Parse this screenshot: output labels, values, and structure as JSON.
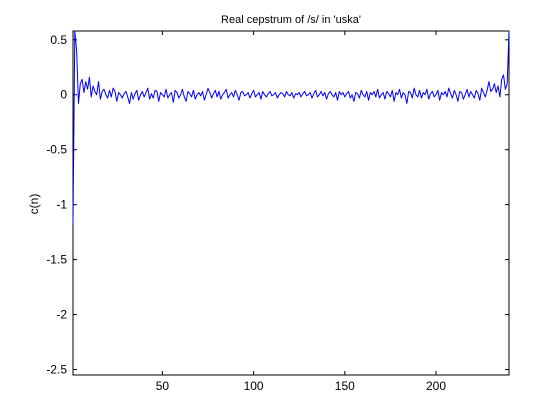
{
  "chart_data": {
    "type": "line",
    "title": "Real cepstrum of /s/ in 'uska'",
    "xlabel": "",
    "ylabel": "c(n)",
    "xlim": [
      1,
      240
    ],
    "ylim": [
      -2.55,
      0.58
    ],
    "xticks": [
      50,
      100,
      150,
      200
    ],
    "yticks": [
      0.5,
      0,
      -0.5,
      -1,
      -1.5,
      -2,
      -2.5
    ],
    "ytick_labels": [
      "0.5",
      "0",
      "-0.5",
      "-1",
      "-1.5",
      "-2",
      "-2.5"
    ],
    "grid": false,
    "line_color": "#0000ff",
    "series": [
      {
        "x": [
          1,
          2,
          3,
          4,
          5,
          6,
          7,
          8,
          9,
          10,
          11,
          12,
          13,
          14,
          15,
          16,
          17,
          18,
          19,
          20,
          21,
          22,
          23,
          24,
          25,
          26,
          27,
          28,
          29,
          30,
          31,
          32,
          33,
          34,
          35,
          36,
          37,
          38,
          39,
          40,
          41,
          42,
          43,
          44,
          45,
          46,
          47,
          48,
          49,
          50,
          51,
          52,
          53,
          54,
          55,
          56,
          57,
          58,
          59,
          60,
          61,
          62,
          63,
          64,
          65,
          66,
          67,
          68,
          69,
          70,
          71,
          72,
          73,
          74,
          75,
          76,
          77,
          78,
          79,
          80,
          81,
          82,
          83,
          84,
          85,
          86,
          87,
          88,
          89,
          90,
          91,
          92,
          93,
          94,
          95,
          96,
          97,
          98,
          99,
          100,
          101,
          102,
          103,
          104,
          105,
          106,
          107,
          108,
          109,
          110,
          111,
          112,
          113,
          114,
          115,
          116,
          117,
          118,
          119,
          120,
          121,
          122,
          123,
          124,
          125,
          126,
          127,
          128,
          129,
          130,
          131,
          132,
          133,
          134,
          135,
          136,
          137,
          138,
          139,
          140,
          141,
          142,
          143,
          144,
          145,
          146,
          147,
          148,
          149,
          150,
          151,
          152,
          153,
          154,
          155,
          156,
          157,
          158,
          159,
          160,
          161,
          162,
          163,
          164,
          165,
          166,
          167,
          168,
          169,
          170,
          171,
          172,
          173,
          174,
          175,
          176,
          177,
          178,
          179,
          180,
          181,
          182,
          183,
          184,
          185,
          186,
          187,
          188,
          189,
          190,
          191,
          192,
          193,
          194,
          195,
          196,
          197,
          198,
          199,
          200,
          201,
          202,
          203,
          204,
          205,
          206,
          207,
          208,
          209,
          210,
          211,
          212,
          213,
          214,
          215,
          216,
          217,
          218,
          219,
          220,
          221,
          222,
          223,
          224,
          225,
          226,
          227,
          228,
          229,
          230,
          231,
          232,
          233,
          234,
          235,
          236,
          237,
          238,
          239,
          240
        ],
        "values": [
          -1.18,
          0.58,
          0.4,
          -0.08,
          0.1,
          0.14,
          0.02,
          0.12,
          0.05,
          0.16,
          -0.02,
          0.08,
          0.03,
          0.0,
          0.12,
          -0.04,
          0.03,
          0.05,
          0.0,
          -0.03,
          0.04,
          -0.02,
          0.06,
          0.03,
          -0.06,
          0.02,
          0.0,
          -0.03,
          0.01,
          0.03,
          -0.02,
          -0.08,
          0.02,
          -0.04,
          0.01,
          0.04,
          -0.05,
          0.0,
          0.03,
          -0.02,
          0.02,
          0.06,
          -0.04,
          0.01,
          -0.03,
          0.04,
          0.03,
          -0.06,
          0.02,
          0.0,
          -0.02,
          0.05,
          -0.03,
          0.0,
          0.02,
          -0.07,
          0.04,
          0.02,
          -0.03,
          0.0,
          0.05,
          -0.02,
          -0.06,
          0.03,
          0.01,
          -0.02,
          0.04,
          -0.04,
          0.0,
          0.02,
          -0.01,
          0.03,
          -0.05,
          0.0,
          0.06,
          0.02,
          -0.03,
          0.01,
          0.04,
          -0.02,
          0.03,
          -0.04,
          0.0,
          0.02,
          0.05,
          -0.03,
          0.0,
          0.02,
          -0.02,
          0.04,
          0.0,
          -0.05,
          0.02,
          0.03,
          -0.01,
          0.0,
          0.02,
          -0.03,
          0.01,
          0.04,
          -0.02,
          0.0,
          0.02,
          -0.04,
          0.03,
          0.0,
          -0.02,
          0.01,
          0.03,
          -0.01,
          0.0,
          0.02,
          -0.03,
          0.0,
          0.02,
          0.01,
          -0.02,
          0.03,
          0.0,
          -0.01,
          0.02,
          -0.03,
          0.01,
          0.0,
          0.02,
          -0.02,
          0.01,
          0.03,
          -0.01,
          0.0,
          0.02,
          -0.03,
          0.01,
          0.04,
          -0.02,
          0.0,
          0.03,
          -0.01,
          0.02,
          -0.04,
          0.01,
          0.03,
          0.0,
          -0.02,
          0.02,
          -0.05,
          0.03,
          0.0,
          0.02,
          -0.02,
          0.01,
          0.03,
          -0.03,
          0.0,
          -0.06,
          0.02,
          0.01,
          -0.03,
          0.04,
          0.0,
          -0.02,
          0.03,
          -0.05,
          0.02,
          0.0,
          0.03,
          -0.02,
          0.05,
          -0.03,
          0.0,
          0.02,
          -0.04,
          0.03,
          0.01,
          -0.02,
          0.04,
          -0.06,
          0.02,
          0.0,
          0.05,
          -0.03,
          0.02,
          0.0,
          -0.08,
          0.03,
          0.02,
          -0.03,
          0.06,
          0.0,
          -0.02,
          0.04,
          -0.03,
          0.02,
          0.0,
          0.05,
          -0.04,
          0.01,
          0.03,
          -0.02,
          0.0,
          0.04,
          -0.05,
          0.02,
          0.0,
          0.03,
          -0.02,
          0.06,
          0.01,
          -0.03,
          0.04,
          0.0,
          -0.06,
          0.03,
          0.02,
          -0.04,
          0.0,
          0.05,
          -0.02,
          0.03,
          0.0,
          -0.03,
          0.04,
          0.01,
          -0.05,
          0.06,
          0.02,
          -0.02,
          0.04,
          0.12,
          0.03,
          0.05,
          0.1,
          0.02,
          0.08,
          -0.02,
          0.14,
          0.18,
          0.05,
          0.1,
          0.58
        ]
      }
    ]
  }
}
